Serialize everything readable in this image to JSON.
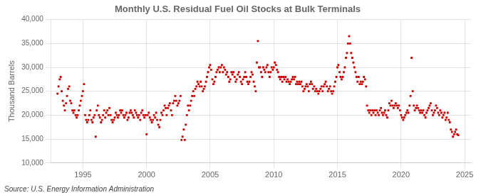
{
  "chart_data": {
    "type": "scatter",
    "title": "Monthly U.S. Residual Fuel Oil Stocks at Bulk Terminals",
    "y_label": "Thousand Barrels",
    "annotations": [
      "Source: U.S. Energy Information Administration"
    ],
    "color": "#cc0000",
    "marker": "square",
    "grid": true,
    "xlim": [
      1992.5,
      2025.5
    ],
    "xticks": [
      1995,
      2000,
      2005,
      2010,
      2015,
      2020,
      2025
    ],
    "ylim": [
      10000,
      40000
    ],
    "yticks": [
      {
        "value": 10000,
        "label": "10,000"
      },
      {
        "value": 15000,
        "label": "15,000"
      },
      {
        "value": 20000,
        "label": "20,000"
      },
      {
        "value": 25000,
        "label": "25,000"
      },
      {
        "value": 30000,
        "label": "30,000"
      },
      {
        "value": 35000,
        "label": "35,000"
      },
      {
        "value": 40000,
        "label": "40,000"
      }
    ],
    "x": [
      1993.0,
      1993.08,
      1993.17,
      1993.25,
      1993.33,
      1993.42,
      1993.5,
      1993.58,
      1993.67,
      1993.75,
      1993.83,
      1993.92,
      1994.0,
      1994.08,
      1994.17,
      1994.25,
      1994.33,
      1994.42,
      1994.5,
      1994.58,
      1994.67,
      1994.75,
      1994.83,
      1994.92,
      1995.0,
      1995.08,
      1995.17,
      1995.25,
      1995.33,
      1995.42,
      1995.5,
      1995.58,
      1995.67,
      1995.75,
      1995.83,
      1995.92,
      1996.0,
      1996.08,
      1996.17,
      1996.25,
      1996.33,
      1996.42,
      1996.5,
      1996.58,
      1996.67,
      1996.75,
      1996.83,
      1996.92,
      1997.0,
      1997.08,
      1997.17,
      1997.25,
      1997.33,
      1997.42,
      1997.5,
      1997.58,
      1997.67,
      1997.75,
      1997.83,
      1997.92,
      1998.0,
      1998.08,
      1998.17,
      1998.25,
      1998.33,
      1998.42,
      1998.5,
      1998.58,
      1998.67,
      1998.75,
      1998.83,
      1998.92,
      1999.0,
      1999.08,
      1999.17,
      1999.25,
      1999.33,
      1999.42,
      1999.5,
      1999.58,
      1999.67,
      1999.75,
      1999.83,
      1999.92,
      2000.0,
      2000.08,
      2000.17,
      2000.25,
      2000.33,
      2000.42,
      2000.5,
      2000.58,
      2000.67,
      2000.75,
      2000.83,
      2000.92,
      2001.0,
      2001.08,
      2001.17,
      2001.25,
      2001.33,
      2001.42,
      2001.5,
      2001.58,
      2001.67,
      2001.75,
      2001.83,
      2001.92,
      2002.0,
      2002.08,
      2002.17,
      2002.25,
      2002.33,
      2002.42,
      2002.5,
      2002.58,
      2002.67,
      2002.75,
      2002.83,
      2002.92,
      2003.0,
      2003.08,
      2003.17,
      2003.25,
      2003.33,
      2003.42,
      2003.5,
      2003.58,
      2003.67,
      2003.75,
      2003.83,
      2003.92,
      2004.0,
      2004.08,
      2004.17,
      2004.25,
      2004.33,
      2004.42,
      2004.5,
      2004.58,
      2004.67,
      2004.75,
      2004.83,
      2004.92,
      2005.0,
      2005.08,
      2005.17,
      2005.25,
      2005.33,
      2005.42,
      2005.5,
      2005.58,
      2005.67,
      2005.75,
      2005.83,
      2005.92,
      2006.0,
      2006.08,
      2006.17,
      2006.25,
      2006.33,
      2006.42,
      2006.5,
      2006.58,
      2006.67,
      2006.75,
      2006.83,
      2006.92,
      2007.0,
      2007.08,
      2007.17,
      2007.25,
      2007.33,
      2007.42,
      2007.5,
      2007.58,
      2007.67,
      2007.75,
      2007.83,
      2007.92,
      2008.0,
      2008.08,
      2008.17,
      2008.25,
      2008.33,
      2008.42,
      2008.5,
      2008.58,
      2008.67,
      2008.75,
      2008.83,
      2008.92,
      2009.0,
      2009.08,
      2009.17,
      2009.25,
      2009.33,
      2009.42,
      2009.5,
      2009.58,
      2009.67,
      2009.75,
      2009.83,
      2009.92,
      2010.0,
      2010.08,
      2010.17,
      2010.25,
      2010.33,
      2010.42,
      2010.5,
      2010.58,
      2010.67,
      2010.75,
      2010.83,
      2010.92,
      2011.0,
      2011.08,
      2011.17,
      2011.25,
      2011.33,
      2011.42,
      2011.5,
      2011.58,
      2011.67,
      2011.75,
      2011.83,
      2011.92,
      2012.0,
      2012.08,
      2012.17,
      2012.25,
      2012.33,
      2012.42,
      2012.5,
      2012.58,
      2012.67,
      2012.75,
      2012.83,
      2012.92,
      2013.0,
      2013.08,
      2013.17,
      2013.25,
      2013.33,
      2013.42,
      2013.5,
      2013.58,
      2013.67,
      2013.75,
      2013.83,
      2013.92,
      2014.0,
      2014.08,
      2014.17,
      2014.25,
      2014.33,
      2014.42,
      2014.5,
      2014.58,
      2014.67,
      2014.75,
      2014.83,
      2014.92,
      2015.0,
      2015.08,
      2015.17,
      2015.25,
      2015.33,
      2015.42,
      2015.5,
      2015.58,
      2015.67,
      2015.75,
      2015.83,
      2015.92,
      2016.0,
      2016.08,
      2016.17,
      2016.25,
      2016.33,
      2016.42,
      2016.5,
      2016.58,
      2016.67,
      2016.75,
      2016.83,
      2016.92,
      2017.0,
      2017.08,
      2017.17,
      2017.25,
      2017.33,
      2017.42,
      2017.5,
      2017.58,
      2017.67,
      2017.75,
      2017.83,
      2017.92,
      2018.0,
      2018.08,
      2018.17,
      2018.25,
      2018.33,
      2018.42,
      2018.5,
      2018.58,
      2018.67,
      2018.75,
      2018.83,
      2018.92,
      2019.0,
      2019.08,
      2019.17,
      2019.25,
      2019.33,
      2019.42,
      2019.5,
      2019.58,
      2019.67,
      2019.75,
      2019.83,
      2019.92,
      2020.0,
      2020.08,
      2020.17,
      2020.25,
      2020.33,
      2020.42,
      2020.5,
      2020.58,
      2020.67,
      2020.75,
      2020.83,
      2020.92,
      2021.0,
      2021.08,
      2021.17,
      2021.25,
      2021.33,
      2021.42,
      2021.5,
      2021.58,
      2021.67,
      2021.75,
      2021.83,
      2021.92,
      2022.0,
      2022.08,
      2022.17,
      2022.25,
      2022.33,
      2022.42,
      2022.5,
      2022.58,
      2022.67,
      2022.75,
      2022.83,
      2022.92,
      2023.0,
      2023.08,
      2023.17,
      2023.25,
      2023.33,
      2023.42,
      2023.5,
      2023.58,
      2023.67,
      2023.75,
      2023.83,
      2023.92,
      2024.0,
      2024.08,
      2024.17,
      2024.25,
      2024.33,
      2024.42,
      2024.5
    ],
    "values": [
      24500,
      26000,
      27500,
      28000,
      25000,
      23000,
      22000,
      21000,
      22500,
      24000,
      25500,
      26000,
      23000,
      22500,
      21000,
      20500,
      21000,
      20000,
      19500,
      20000,
      21000,
      22000,
      23000,
      24000,
      25000,
      26500,
      20000,
      19000,
      18500,
      19000,
      20000,
      21000,
      19000,
      18500,
      19500,
      20000,
      15500,
      21000,
      22000,
      20000,
      19500,
      18500,
      19000,
      20000,
      21000,
      19500,
      20500,
      21000,
      20000,
      21500,
      20000,
      19000,
      18500,
      19000,
      19500,
      20500,
      20000,
      19500,
      20000,
      21000,
      20500,
      21000,
      20000,
      19500,
      20000,
      20500,
      19000,
      19500,
      20500,
      21000,
      20500,
      20000,
      19500,
      21000,
      20500,
      20000,
      19500,
      20000,
      19000,
      20500,
      21000,
      20000,
      19500,
      20000,
      16000,
      20000,
      20500,
      19500,
      19000,
      18500,
      19000,
      20000,
      19500,
      20500,
      19000,
      18000,
      17500,
      19000,
      20500,
      20000,
      21000,
      22000,
      21500,
      20000,
      21500,
      22000,
      22500,
      21000,
      20000,
      22500,
      23000,
      24000,
      23000,
      22000,
      22500,
      23000,
      24000,
      14800,
      15500,
      17000,
      14800,
      18000,
      20000,
      22000,
      21000,
      22000,
      23000,
      24000,
      25000,
      24000,
      25500,
      26000,
      27000,
      26500,
      26000,
      27000,
      26000,
      25000,
      25500,
      26000,
      27000,
      28000,
      29000,
      30000,
      30500,
      29500,
      27500,
      26500,
      27000,
      28000,
      29000,
      29500,
      30000,
      29000,
      30000,
      30500,
      29000,
      30000,
      29500,
      28500,
      29000,
      28000,
      27000,
      27500,
      29000,
      28500,
      29000,
      28000,
      27000,
      27500,
      28500,
      29000,
      28000,
      27000,
      26500,
      27500,
      28000,
      29000,
      28000,
      27000,
      26500,
      27000,
      28000,
      29000,
      28500,
      27000,
      26000,
      25000,
      31000,
      35500,
      30000,
      30000,
      29000,
      28000,
      30000,
      29500,
      29000,
      30000,
      30500,
      29000,
      28000,
      29000,
      30000,
      29500,
      30000,
      31000,
      30500,
      29500,
      29000,
      28000,
      27500,
      28000,
      27000,
      28000,
      27500,
      28000,
      27000,
      27500,
      27000,
      26500,
      27000,
      27500,
      28000,
      27500,
      28000,
      26500,
      27000,
      26500,
      27000,
      26500,
      27000,
      26000,
      25000,
      25500,
      26000,
      26500,
      26000,
      25000,
      26500,
      27000,
      26500,
      25500,
      26000,
      25000,
      25500,
      25000,
      24500,
      25000,
      25500,
      26000,
      25000,
      26000,
      26500,
      27000,
      26000,
      25000,
      25500,
      26000,
      25000,
      24500,
      25000,
      26000,
      27000,
      28000,
      30000,
      30500,
      29000,
      28000,
      27500,
      28000,
      29000,
      30000,
      32000,
      33000,
      35000,
      36500,
      35000,
      33000,
      32000,
      31000,
      30000,
      29000,
      28000,
      27000,
      28000,
      26500,
      27000,
      26500,
      27000,
      28000,
      27500,
      26000,
      22000,
      21000,
      20500,
      21000,
      20000,
      21000,
      20500,
      21000,
      20000,
      21000,
      20500,
      20000,
      21000,
      21500,
      20500,
      20000,
      20500,
      21000,
      20000,
      19500,
      21000,
      22500,
      22000,
      23000,
      22000,
      21500,
      22000,
      22500,
      22000,
      21500,
      22000,
      21000,
      20000,
      19500,
      19000,
      19500,
      20000,
      20500,
      21000,
      20500,
      22000,
      24000,
      32000,
      25000,
      22000,
      21000,
      21500,
      22000,
      21500,
      21000,
      20500,
      21000,
      20500,
      21000,
      20000,
      19500,
      20500,
      21000,
      21500,
      22000,
      22500,
      21000,
      20000,
      20500,
      21000,
      22000,
      21500,
      20500,
      20000,
      21000,
      20500,
      19500,
      20000,
      20500,
      19000,
      19500,
      20500,
      19000,
      18500,
      17000,
      16500,
      15500,
      16000,
      16500,
      17000,
      16000,
      15800
    ]
  }
}
